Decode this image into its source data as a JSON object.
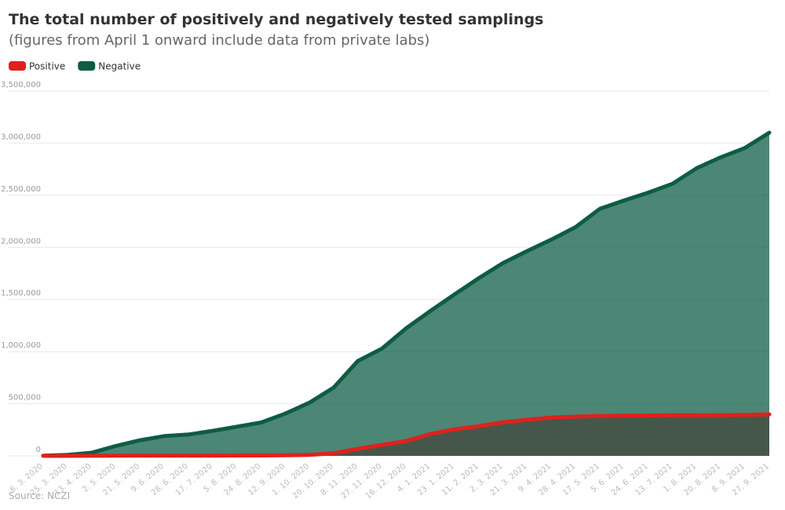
{
  "chart_data": {
    "type": "area",
    "title": "The total number of positively and negatively tested samplings",
    "subtitle": "(figures from April 1 onward include data from private labs)",
    "source": "Source: NCZI",
    "legend": "top-left",
    "grid": true,
    "categories": [
      "6. 3. 2020",
      "25. 3. 2020",
      "13. 4. 2020",
      "2. 5. 2020",
      "21. 5. 2020",
      "9. 6. 2020",
      "28. 6. 2020",
      "17. 7. 2020",
      "5. 8. 2020",
      "24. 8. 2020",
      "12. 9. 2020",
      "1. 10. 2020",
      "20. 10. 2020",
      "8. 11. 2020",
      "27. 11. 2020",
      "16. 12. 2020",
      "4. 1. 2021",
      "23. 1. 2021",
      "11. 2. 2021",
      "2. 3. 2021",
      "21. 3. 2021",
      "9. 4. 2021",
      "28. 4. 2021",
      "17. 5. 2021",
      "5. 6. 2021",
      "24. 6. 2021",
      "13. 7. 2021",
      "1. 8. 2021",
      "20. 8. 2021",
      "8. 9. 2021",
      "27. 9. 2021"
    ],
    "series": [
      {
        "name": "Negative",
        "color": "#0d5c45",
        "values": [
          2000,
          10000,
          30000,
          95000,
          150000,
          190000,
          205000,
          240000,
          280000,
          320000,
          405000,
          510000,
          655000,
          910000,
          1030000,
          1225000,
          1390000,
          1550000,
          1705000,
          1850000,
          1965000,
          2075000,
          2195000,
          2370000,
          2450000,
          2525000,
          2610000,
          2760000,
          2865000,
          2955000,
          3100000
        ]
      },
      {
        "name": "Positive",
        "color": "#e0211b",
        "values": [
          20,
          300,
          700,
          1400,
          1500,
          1600,
          1700,
          2000,
          2700,
          3500,
          5000,
          9000,
          25000,
          68000,
          105000,
          143000,
          210000,
          255000,
          285000,
          323000,
          346000,
          368000,
          376000,
          383000,
          386000,
          388000,
          389000,
          390000,
          391000,
          392000,
          398000
        ]
      }
    ],
    "legend_order": [
      1,
      0
    ],
    "ylim": [
      0,
      3500000
    ],
    "yticks": [
      0,
      {
        "value": 500000,
        "label": "500,000"
      },
      {
        "value": 1000000,
        "label": "1,000,000"
      },
      {
        "value": 1500000,
        "label": "1,500,000"
      },
      {
        "value": 2000000,
        "label": "2,000,000"
      },
      {
        "value": 2500000,
        "label": "2,500,000"
      },
      {
        "value": 3000000,
        "label": "3,000,000"
      },
      {
        "value": 3500000,
        "label": "3,500,000"
      }
    ]
  }
}
